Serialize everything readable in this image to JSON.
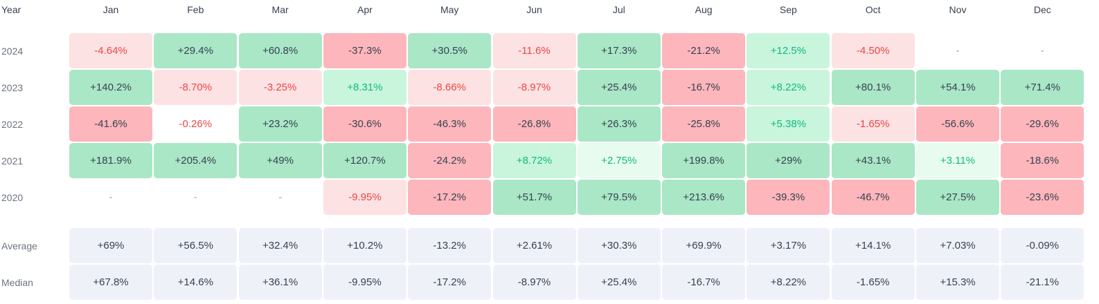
{
  "table": {
    "header": [
      "Year",
      "Jan",
      "Feb",
      "Mar",
      "Apr",
      "May",
      "Jun",
      "Jul",
      "Aug",
      "Sep",
      "Oct",
      "Nov",
      "Dec"
    ],
    "rows": [
      [
        "2024",
        "-4.64%",
        "+29.4%",
        "+60.8%",
        "-37.3%",
        "+30.5%",
        "-11.6%",
        "+17.3%",
        "-21.2%",
        "+12.5%",
        "-4.50%",
        "-",
        "-"
      ],
      [
        "2023",
        "+140.2%",
        "-8.70%",
        "-3.25%",
        "+8.31%",
        "-8.66%",
        "-8.97%",
        "+25.4%",
        "-16.7%",
        "+8.22%",
        "+80.1%",
        "+54.1%",
        "+71.4%"
      ],
      [
        "2022",
        "-41.6%",
        "-0.26%",
        "+23.2%",
        "-30.6%",
        "-46.3%",
        "-26.8%",
        "+26.3%",
        "-25.8%",
        "+5.38%",
        "-1.65%",
        "-56.6%",
        "-29.6%"
      ],
      [
        "2021",
        "+181.9%",
        "+205.4%",
        "+49%",
        "+120.7%",
        "-24.2%",
        "+8.72%",
        "+2.75%",
        "+199.8%",
        "+29%",
        "+43.1%",
        "+3.11%",
        "-18.6%"
      ],
      [
        "2020",
        "-",
        "-",
        "-",
        "-9.95%",
        "-17.2%",
        "+51.7%",
        "+79.5%",
        "+213.6%",
        "-39.3%",
        "-46.7%",
        "+27.5%",
        "-23.6%"
      ]
    ],
    "summary": [
      [
        "Average",
        "+69%",
        "+56.5%",
        "+32.4%",
        "+10.2%",
        "-13.2%",
        "+2.61%",
        "+30.3%",
        "+69.9%",
        "+3.17%",
        "+14.1%",
        "+7.03%",
        "-0.09%"
      ],
      [
        "Median",
        "+67.8%",
        "+14.6%",
        "+36.1%",
        "-9.95%",
        "-17.2%",
        "-8.97%",
        "+25.4%",
        "-16.7%",
        "+8.22%",
        "-1.65%",
        "+15.3%",
        "-21.1%"
      ]
    ]
  }
}
